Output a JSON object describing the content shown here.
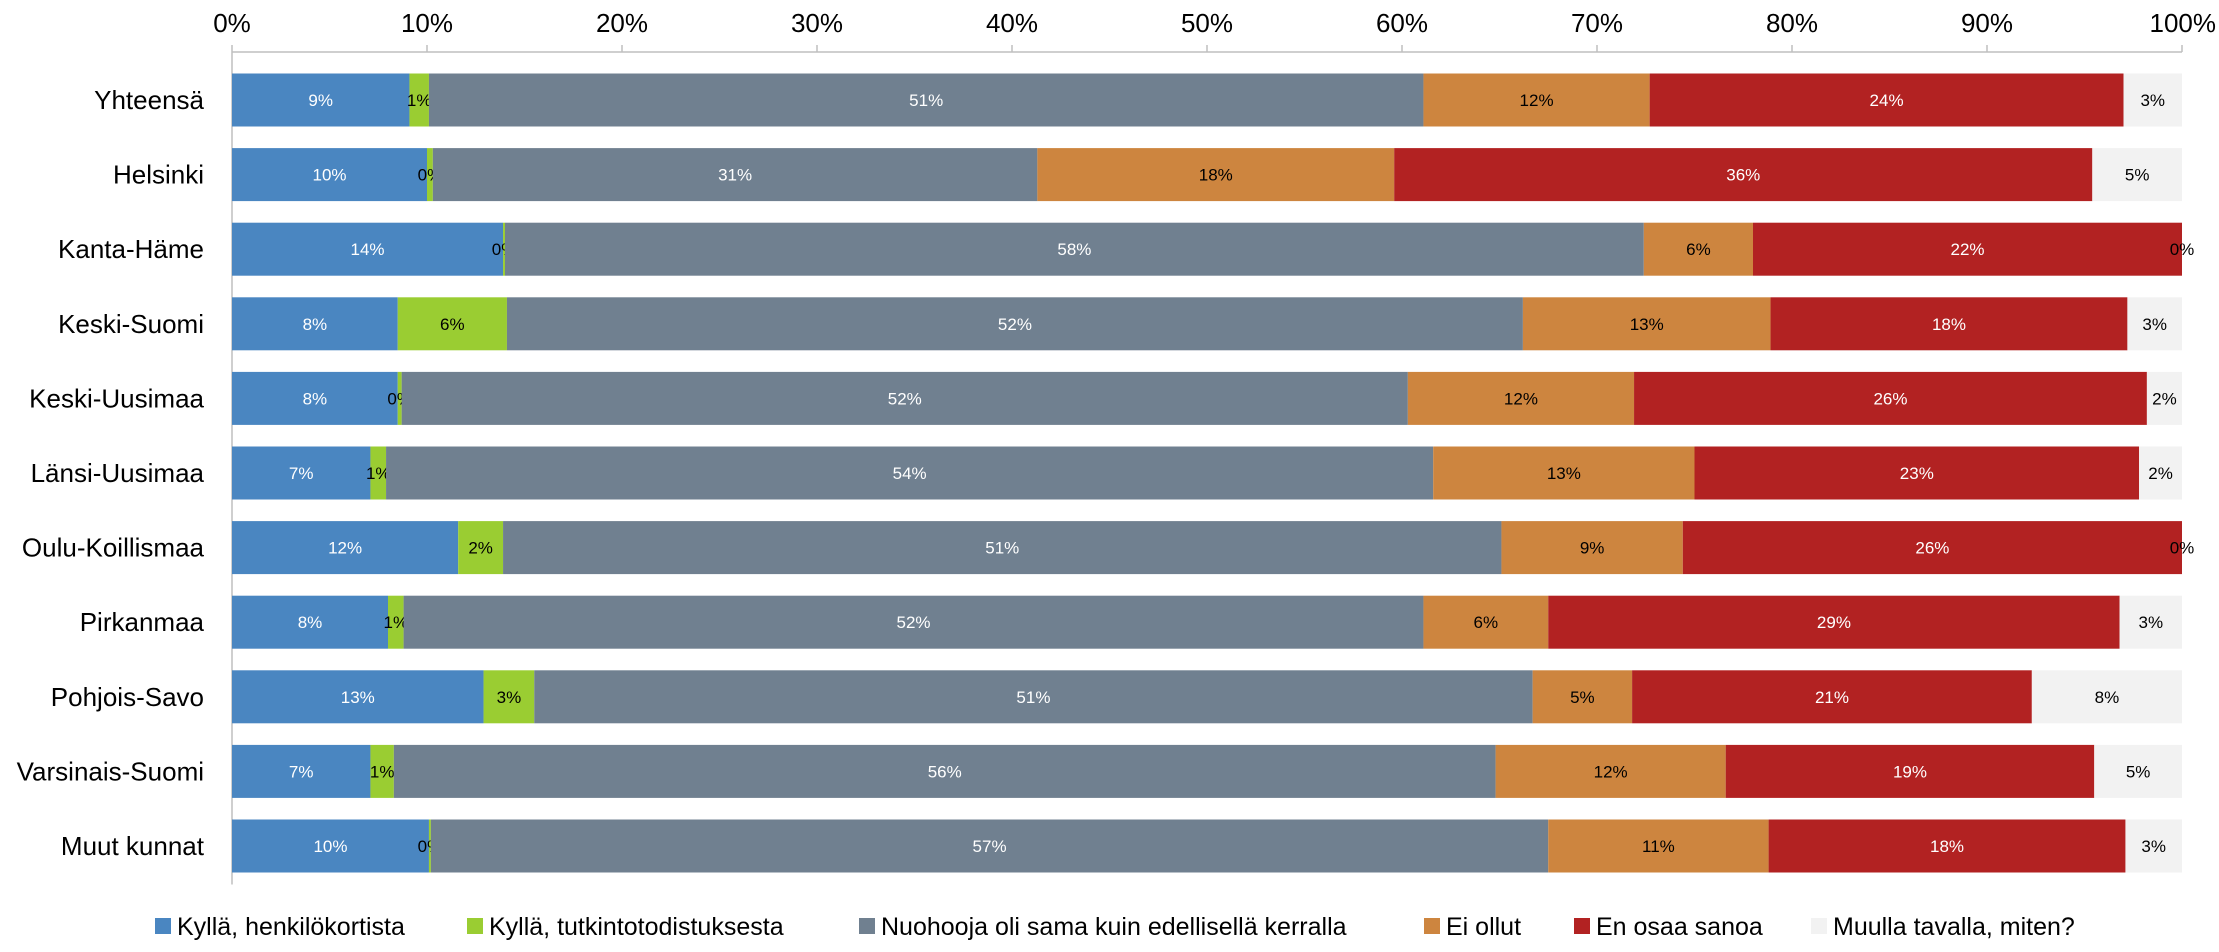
{
  "chart_data": {
    "type": "bar",
    "orientation": "horizontal",
    "stacked": "percent",
    "title": "",
    "xlabel": "",
    "ylabel": "",
    "xlim": [
      0,
      100
    ],
    "x_tick_labels": [
      "0%",
      "10%",
      "20%",
      "30%",
      "40%",
      "50%",
      "60%",
      "70%",
      "80%",
      "90%",
      "100%"
    ],
    "legend_position": "bottom",
    "grid": false,
    "categories": [
      "Yhteensä",
      "Helsinki",
      "Kanta-Häme",
      "Keski-Suomi",
      "Keski-Uusimaa",
      "Länsi-Uusimaa",
      "Oulu-Koillismaa",
      "Pirkanmaa",
      "Pohjois-Savo",
      "Varsinais-Suomi",
      "Muut kunnat"
    ],
    "series": [
      {
        "name": "Kyllä, henkilökortista",
        "color": "#4a86c1",
        "label_color": "#ffffff",
        "values": [
          9.1,
          10.0,
          13.9,
          8.5,
          8.5,
          7.1,
          11.6,
          8.0,
          12.9,
          7.1,
          10.1
        ],
        "labels": [
          "9%",
          "10%",
          "14%",
          "8%",
          "8%",
          "7%",
          "12%",
          "8%",
          "13%",
          "7%",
          "10%"
        ]
      },
      {
        "name": "Kyllä, tutkintotodistuksesta",
        "color": "#9acd32",
        "label_color": "#000000",
        "values": [
          1.0,
          0.3,
          0.1,
          5.6,
          0.2,
          0.8,
          2.3,
          0.8,
          2.6,
          1.2,
          0.1
        ],
        "labels": [
          "1%",
          "0%",
          "0%",
          "6%",
          "0%",
          "1%",
          "2%",
          "1%",
          "3%",
          "1%",
          "0%"
        ]
      },
      {
        "name": "Nuohooja oli sama kuin edellisellä kerralla",
        "color": "#708090",
        "label_color": "#ffffff",
        "values": [
          51.0,
          31.0,
          58.4,
          52.1,
          51.6,
          53.7,
          51.2,
          52.3,
          51.2,
          56.5,
          57.3
        ],
        "labels": [
          "51%",
          "31%",
          "58%",
          "52%",
          "52%",
          "54%",
          "51%",
          "52%",
          "51%",
          "56%",
          "57%"
        ]
      },
      {
        "name": "Ei ollut",
        "color": "#cd853f",
        "label_color": "#000000",
        "values": [
          11.6,
          18.3,
          5.6,
          12.7,
          11.6,
          13.4,
          9.3,
          6.4,
          5.1,
          11.8,
          11.3
        ],
        "labels": [
          "12%",
          "18%",
          "6%",
          "13%",
          "12%",
          "13%",
          "9%",
          "6%",
          "5%",
          "12%",
          "11%"
        ]
      },
      {
        "name": "En osaa sanoa",
        "color": "#b22222",
        "label_color": "#ffffff",
        "values": [
          24.3,
          35.8,
          22.0,
          18.3,
          26.3,
          22.8,
          25.6,
          29.3,
          20.5,
          18.9,
          18.3
        ],
        "labels": [
          "24%",
          "36%",
          "22%",
          "18%",
          "26%",
          "23%",
          "26%",
          "29%",
          "21%",
          "19%",
          "18%"
        ]
      },
      {
        "name": "Muulla tavalla, miten?",
        "color": "#f2f2f2",
        "label_color": "#000000",
        "values": [
          3.0,
          4.6,
          0.0,
          2.8,
          1.8,
          2.2,
          0.0,
          3.2,
          7.7,
          4.5,
          2.9
        ],
        "labels": [
          "3%",
          "5%",
          "0%",
          "3%",
          "2%",
          "2%",
          "0%",
          "3%",
          "8%",
          "5%",
          "3%"
        ]
      }
    ]
  }
}
